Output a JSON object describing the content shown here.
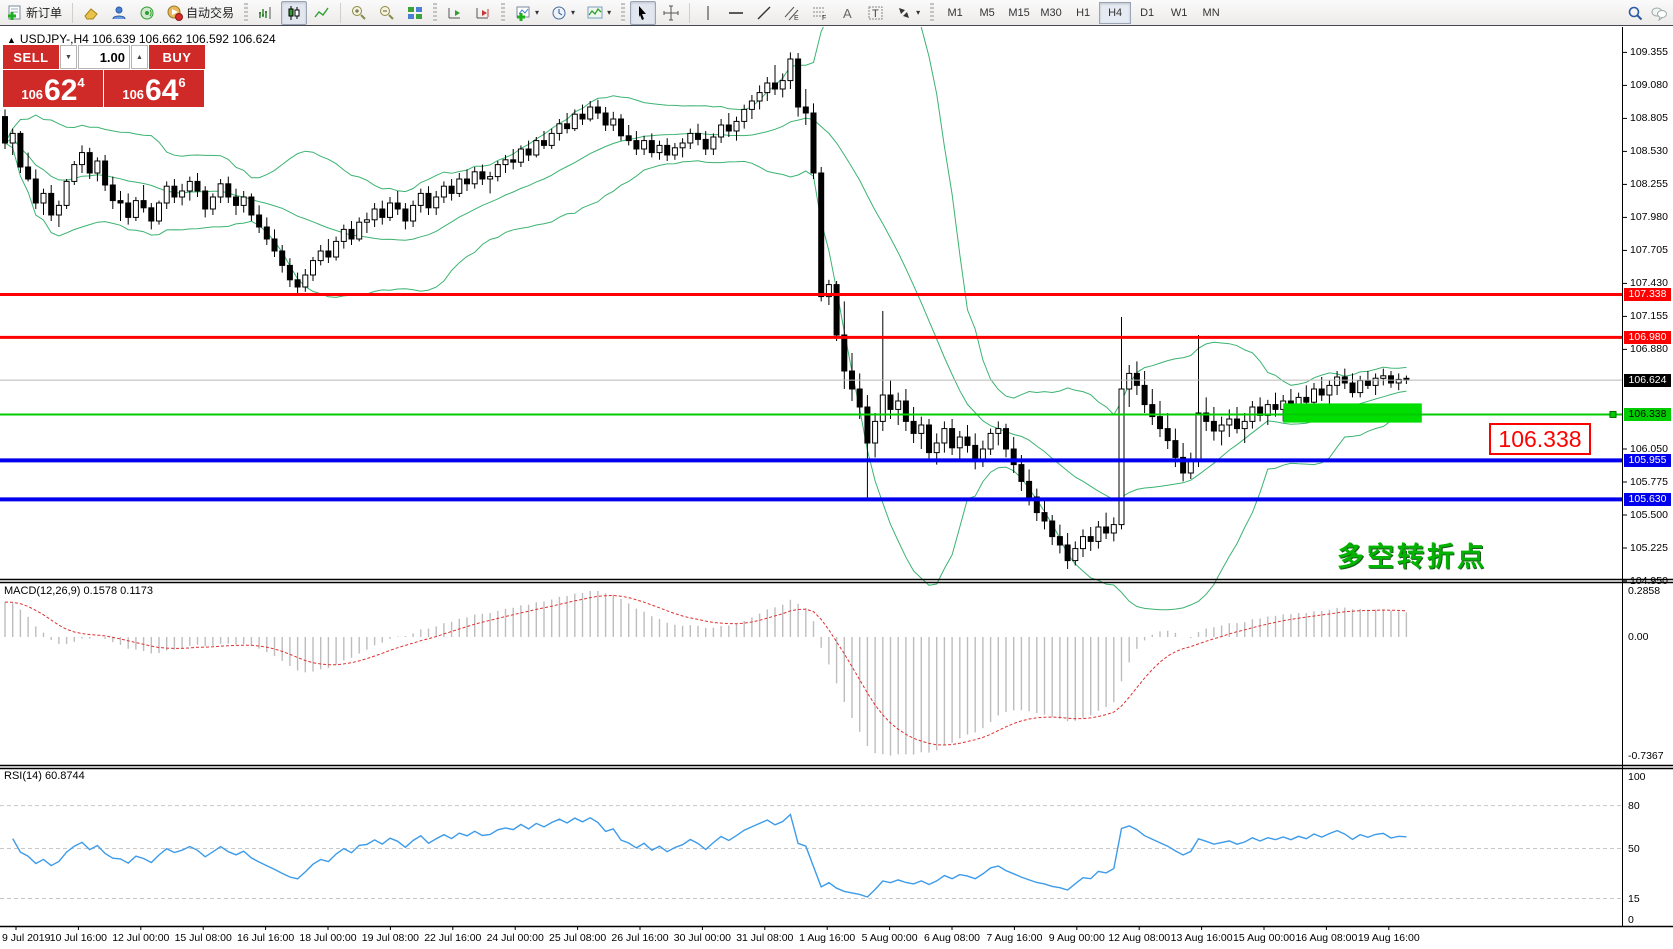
{
  "toolbar": {
    "new_order_label": "新订单",
    "autotrade_label": "自动交易",
    "timeframes": [
      "M1",
      "M5",
      "M15",
      "M30",
      "H1",
      "H4",
      "D1",
      "W1",
      "MN"
    ],
    "active_timeframe": "H4"
  },
  "trade_panel": {
    "sell_label": "SELL",
    "buy_label": "BUY",
    "volume": "1.00",
    "sell_price": {
      "prefix": "106",
      "big": "62",
      "sup": "4"
    },
    "buy_price": {
      "prefix": "106",
      "big": "64",
      "sup": "6"
    }
  },
  "chart": {
    "title": "USDJPY-,H4  106.639 106.662 106.592 106.624"
  },
  "indicators": {
    "macd": {
      "label": "MACD(12,26,9) 0.1578 0.1173",
      "scale": [
        "0.2858",
        "0.00",
        "-0.7367"
      ]
    },
    "rsi": {
      "label": "RSI(14) 60.8744",
      "scale": [
        "100",
        "80",
        "50",
        "15",
        "0"
      ]
    }
  },
  "annotations": {
    "turning_point": "多空转折点",
    "callout": "106.338"
  },
  "price_axis": {
    "ticks": [
      109.355,
      109.08,
      108.805,
      108.53,
      108.255,
      107.98,
      107.705,
      107.43,
      107.155,
      106.88,
      106.05,
      105.775,
      105.5,
      105.225,
      104.95
    ],
    "badges": [
      {
        "text": "107.338",
        "price": 107.338,
        "bg": "#ff0000",
        "fg": "#ffffff"
      },
      {
        "text": "106.980",
        "price": 106.98,
        "bg": "#ff0000",
        "fg": "#ffffff"
      },
      {
        "text": "106.624",
        "price": 106.624,
        "bg": "#000000",
        "fg": "#ffffff"
      },
      {
        "text": "106.338",
        "price": 106.338,
        "bg": "#00cc00",
        "fg": "#000000"
      },
      {
        "text": "105.955",
        "price": 105.955,
        "bg": "#0000ee",
        "fg": "#ffffff"
      },
      {
        "text": "105.630",
        "price": 105.63,
        "bg": "#0000ee",
        "fg": "#ffffff"
      }
    ]
  },
  "time_axis": {
    "labels": [
      "9 Jul 2019",
      "10 Jul 16:00",
      "12 Jul 00:00",
      "15 Jul 08:00",
      "16 Jul 16:00",
      "18 Jul 00:00",
      "19 Jul 08:00",
      "22 Jul 16:00",
      "24 Jul 00:00",
      "25 Jul 08:00",
      "26 Jul 16:00",
      "30 Jul 00:00",
      "31 Jul 08:00",
      "1 Aug 16:00",
      "5 Aug 00:00",
      "6 Aug 08:00",
      "7 Aug 16:00",
      "9 Aug 00:00",
      "12 Aug 08:00",
      "13 Aug 16:00",
      "15 Aug 00:00",
      "16 Aug 08:00",
      "19 Aug 16:00"
    ]
  },
  "chart_data": {
    "type": "candlestick",
    "symbol": "USDJPY-",
    "timeframe": "H4",
    "last_quote": {
      "open": 106.639,
      "high": 106.662,
      "low": 106.592,
      "close": 106.624
    },
    "ylim": [
      104.95,
      109.355
    ],
    "colors": {
      "bollinger": "#3cb371",
      "bull_body": "#ffffff",
      "bear_body": "#000000",
      "macd_hist": "#bdbdbd",
      "macd_signal": "#e03030",
      "rsi_line": "#3d9be9",
      "level_red": "#ff0000",
      "level_green": "#00cc00",
      "level_blue": "#0000ee",
      "current_price": "#b8b8b8",
      "zone_fill": "#00dd00"
    },
    "horizontal_lines": [
      {
        "price": 107.338,
        "color": "#ff0000",
        "width": 3
      },
      {
        "price": 106.98,
        "color": "#ff0000",
        "width": 3
      },
      {
        "price": 106.338,
        "color": "#00cc00",
        "width": 2
      },
      {
        "price": 105.955,
        "color": "#0000ee",
        "width": 4
      },
      {
        "price": 105.63,
        "color": "#0000ee",
        "width": 4
      }
    ],
    "current_price_line": {
      "price": 106.624,
      "color": "#b8b8b8",
      "width": 1
    },
    "zone_rect": {
      "price_top": 106.43,
      "price_bottom": 106.27,
      "bar_from": 166,
      "bar_to": 184
    },
    "indicator_params": [
      {
        "name": "Bollinger Bands",
        "period": 20,
        "deviation": 2
      },
      {
        "name": "MACD",
        "fast": 12,
        "slow": 26,
        "signal": 9,
        "current": [
          0.1578,
          0.1173
        ],
        "scale_max": 0.2858,
        "scale_min": -0.7367
      },
      {
        "name": "RSI",
        "period": 14,
        "current": 60.8744,
        "levels": [
          80,
          50,
          15
        ]
      }
    ],
    "candles_ohlc": [
      [
        108.82,
        108.88,
        108.55,
        108.6
      ],
      [
        108.6,
        108.72,
        108.5,
        108.68
      ],
      [
        108.68,
        108.7,
        108.35,
        108.4
      ],
      [
        108.4,
        108.52,
        108.28,
        108.3
      ],
      [
        108.3,
        108.38,
        108.05,
        108.1
      ],
      [
        108.1,
        108.22,
        108.0,
        108.18
      ],
      [
        108.18,
        108.25,
        107.95,
        108.0
      ],
      [
        108.0,
        108.12,
        107.9,
        108.08
      ],
      [
        108.08,
        108.3,
        108.05,
        108.28
      ],
      [
        108.28,
        108.45,
        108.25,
        108.42
      ],
      [
        108.42,
        108.58,
        108.35,
        108.52
      ],
      [
        108.52,
        108.56,
        108.3,
        108.35
      ],
      [
        108.35,
        108.48,
        108.28,
        108.45
      ],
      [
        108.45,
        108.5,
        108.2,
        108.25
      ],
      [
        108.25,
        108.32,
        108.05,
        108.12
      ],
      [
        108.12,
        108.2,
        107.95,
        108.1
      ],
      [
        108.1,
        108.18,
        107.92,
        107.98
      ],
      [
        107.98,
        108.15,
        107.95,
        108.12
      ],
      [
        108.12,
        108.25,
        108.02,
        108.06
      ],
      [
        108.06,
        108.1,
        107.88,
        107.95
      ],
      [
        107.95,
        108.12,
        107.92,
        108.1
      ],
      [
        108.1,
        108.28,
        108.05,
        108.24
      ],
      [
        108.24,
        108.3,
        108.1,
        108.15
      ],
      [
        108.15,
        108.26,
        108.08,
        108.2
      ],
      [
        108.2,
        108.32,
        108.12,
        108.28
      ],
      [
        108.28,
        108.35,
        108.15,
        108.2
      ],
      [
        108.2,
        108.24,
        107.98,
        108.05
      ],
      [
        108.05,
        108.18,
        108.0,
        108.15
      ],
      [
        108.15,
        108.3,
        108.1,
        108.26
      ],
      [
        108.26,
        108.32,
        108.1,
        108.15
      ],
      [
        108.15,
        108.22,
        108.0,
        108.08
      ],
      [
        108.08,
        108.2,
        108.02,
        108.15
      ],
      [
        108.15,
        108.18,
        107.95,
        108.0
      ],
      [
        108.0,
        108.08,
        107.85,
        107.9
      ],
      [
        107.9,
        107.98,
        107.75,
        107.8
      ],
      [
        107.8,
        107.88,
        107.65,
        107.7
      ],
      [
        107.7,
        107.75,
        107.52,
        107.58
      ],
      [
        107.58,
        107.64,
        107.4,
        107.46
      ],
      [
        107.46,
        107.52,
        107.34,
        107.4
      ],
      [
        107.4,
        107.55,
        107.36,
        107.5
      ],
      [
        107.5,
        107.65,
        107.45,
        107.62
      ],
      [
        107.62,
        107.75,
        107.58,
        107.7
      ],
      [
        107.7,
        107.8,
        107.6,
        107.65
      ],
      [
        107.65,
        107.82,
        107.62,
        107.78
      ],
      [
        107.78,
        107.92,
        107.72,
        107.88
      ],
      [
        107.88,
        107.95,
        107.75,
        107.8
      ],
      [
        107.8,
        107.98,
        107.78,
        107.94
      ],
      [
        107.94,
        108.02,
        107.85,
        107.96
      ],
      [
        107.96,
        108.1,
        107.9,
        108.05
      ],
      [
        108.05,
        108.12,
        107.92,
        107.98
      ],
      [
        107.98,
        108.15,
        107.95,
        108.1
      ],
      [
        108.1,
        108.2,
        108.0,
        108.05
      ],
      [
        108.05,
        108.1,
        107.88,
        107.95
      ],
      [
        107.95,
        108.12,
        107.9,
        108.08
      ],
      [
        108.08,
        108.22,
        108.02,
        108.18
      ],
      [
        108.18,
        108.24,
        108.0,
        108.06
      ],
      [
        108.06,
        108.2,
        108.0,
        108.15
      ],
      [
        108.15,
        108.28,
        108.1,
        108.24
      ],
      [
        108.24,
        108.3,
        108.12,
        108.18
      ],
      [
        108.18,
        108.35,
        108.15,
        108.3
      ],
      [
        108.3,
        108.38,
        108.2,
        108.26
      ],
      [
        108.26,
        108.4,
        108.22,
        108.36
      ],
      [
        108.36,
        108.42,
        108.25,
        108.3
      ],
      [
        108.3,
        108.36,
        108.18,
        108.32
      ],
      [
        108.32,
        108.45,
        108.28,
        108.42
      ],
      [
        108.42,
        108.5,
        108.35,
        108.46
      ],
      [
        108.46,
        108.55,
        108.38,
        108.44
      ],
      [
        108.44,
        108.58,
        108.4,
        108.55
      ],
      [
        108.55,
        108.62,
        108.45,
        108.5
      ],
      [
        108.5,
        108.65,
        108.48,
        108.62
      ],
      [
        108.62,
        108.7,
        108.55,
        108.58
      ],
      [
        108.58,
        108.72,
        108.55,
        108.68
      ],
      [
        108.68,
        108.8,
        108.62,
        108.76
      ],
      [
        108.76,
        108.85,
        108.68,
        108.72
      ],
      [
        108.72,
        108.88,
        108.7,
        108.84
      ],
      [
        108.84,
        108.92,
        108.75,
        108.8
      ],
      [
        108.8,
        108.95,
        108.78,
        108.9
      ],
      [
        108.9,
        108.96,
        108.8,
        108.85
      ],
      [
        108.85,
        108.9,
        108.7,
        108.75
      ],
      [
        108.75,
        108.86,
        108.7,
        108.8
      ],
      [
        108.8,
        108.84,
        108.62,
        108.66
      ],
      [
        108.66,
        108.75,
        108.58,
        108.62
      ],
      [
        108.62,
        108.7,
        108.5,
        108.55
      ],
      [
        108.55,
        108.66,
        108.5,
        108.62
      ],
      [
        108.62,
        108.68,
        108.48,
        108.52
      ],
      [
        108.52,
        108.62,
        108.46,
        108.58
      ],
      [
        108.58,
        108.64,
        108.45,
        108.5
      ],
      [
        108.5,
        108.6,
        108.46,
        108.56
      ],
      [
        108.56,
        108.64,
        108.48,
        108.6
      ],
      [
        108.6,
        108.72,
        108.55,
        108.68
      ],
      [
        108.68,
        108.76,
        108.58,
        108.63
      ],
      [
        108.63,
        108.7,
        108.5,
        108.55
      ],
      [
        108.55,
        108.68,
        108.5,
        108.65
      ],
      [
        108.65,
        108.8,
        108.6,
        108.75
      ],
      [
        108.75,
        108.85,
        108.65,
        108.7
      ],
      [
        108.7,
        108.82,
        108.62,
        108.78
      ],
      [
        108.78,
        108.92,
        108.72,
        108.88
      ],
      [
        108.88,
        109.0,
        108.8,
        108.95
      ],
      [
        108.95,
        109.08,
        108.88,
        109.02
      ],
      [
        109.02,
        109.15,
        108.95,
        109.1
      ],
      [
        109.1,
        109.25,
        109.0,
        109.05
      ],
      [
        109.05,
        109.18,
        108.98,
        109.12
      ],
      [
        109.12,
        109.355,
        109.05,
        109.3
      ],
      [
        109.3,
        109.35,
        108.82,
        108.9
      ],
      [
        108.9,
        109.05,
        108.75,
        108.85
      ],
      [
        108.85,
        108.93,
        108.3,
        108.35
      ],
      [
        108.35,
        108.4,
        107.28,
        107.32
      ],
      [
        107.32,
        107.46,
        107.25,
        107.42
      ],
      [
        107.42,
        107.45,
        106.95,
        107.0
      ],
      [
        107.0,
        107.28,
        106.55,
        106.7
      ],
      [
        106.7,
        106.85,
        106.45,
        106.55
      ],
      [
        106.55,
        106.68,
        106.3,
        106.4
      ],
      [
        106.4,
        106.5,
        105.63,
        106.1
      ],
      [
        106.1,
        106.35,
        105.98,
        106.28
      ],
      [
        106.28,
        107.2,
        106.2,
        106.5
      ],
      [
        106.5,
        106.62,
        106.3,
        106.38
      ],
      [
        106.38,
        106.52,
        106.25,
        106.45
      ],
      [
        106.45,
        106.55,
        106.2,
        106.28
      ],
      [
        106.28,
        106.4,
        106.1,
        106.18
      ],
      [
        106.18,
        106.32,
        106.05,
        106.25
      ],
      [
        106.25,
        106.3,
        105.95,
        106.02
      ],
      [
        106.02,
        106.18,
        105.92,
        106.1
      ],
      [
        106.1,
        106.28,
        106.02,
        106.22
      ],
      [
        106.22,
        106.3,
        106.0,
        106.06
      ],
      [
        106.06,
        106.2,
        105.95,
        106.15
      ],
      [
        106.15,
        106.25,
        106.02,
        106.08
      ],
      [
        106.08,
        106.18,
        105.88,
        105.95
      ],
      [
        105.95,
        106.12,
        105.9,
        106.05
      ],
      [
        106.05,
        106.22,
        106.0,
        106.18
      ],
      [
        106.18,
        106.28,
        106.08,
        106.22
      ],
      [
        106.22,
        106.26,
        105.98,
        106.05
      ],
      [
        106.05,
        106.15,
        105.85,
        105.92
      ],
      [
        105.92,
        106.0,
        105.7,
        105.78
      ],
      [
        105.78,
        105.88,
        105.58,
        105.65
      ],
      [
        105.65,
        105.72,
        105.45,
        105.52
      ],
      [
        105.52,
        105.62,
        105.38,
        105.45
      ],
      [
        105.45,
        105.5,
        105.25,
        105.32
      ],
      [
        105.32,
        105.42,
        105.18,
        105.25
      ],
      [
        105.25,
        105.35,
        105.05,
        105.12
      ],
      [
        105.12,
        105.28,
        105.08,
        105.22
      ],
      [
        105.22,
        105.38,
        105.15,
        105.32
      ],
      [
        105.32,
        105.4,
        105.2,
        105.28
      ],
      [
        105.28,
        105.45,
        105.22,
        105.4
      ],
      [
        105.4,
        105.52,
        105.3,
        105.35
      ],
      [
        105.35,
        105.48,
        105.28,
        105.42
      ],
      [
        105.42,
        107.15,
        105.38,
        106.55
      ],
      [
        106.55,
        106.75,
        106.4,
        106.68
      ],
      [
        106.68,
        106.78,
        106.5,
        106.58
      ],
      [
        106.58,
        106.7,
        106.35,
        106.42
      ],
      [
        106.42,
        106.55,
        106.25,
        106.32
      ],
      [
        106.32,
        106.45,
        106.15,
        106.22
      ],
      [
        106.22,
        106.35,
        106.05,
        106.12
      ],
      [
        106.12,
        106.22,
        105.9,
        105.98
      ],
      [
        105.98,
        106.1,
        105.78,
        105.85
      ],
      [
        105.85,
        106.02,
        105.8,
        105.95
      ],
      [
        105.95,
        107.0,
        105.9,
        106.35
      ],
      [
        106.35,
        106.48,
        106.2,
        106.28
      ],
      [
        106.28,
        106.4,
        106.12,
        106.2
      ],
      [
        106.2,
        106.32,
        106.08,
        106.25
      ],
      [
        106.25,
        106.38,
        106.15,
        106.3
      ],
      [
        106.3,
        106.4,
        106.18,
        106.22
      ],
      [
        106.22,
        106.35,
        106.1,
        106.28
      ],
      [
        106.28,
        106.45,
        106.22,
        106.4
      ],
      [
        106.4,
        106.48,
        106.28,
        106.33
      ],
      [
        106.33,
        106.46,
        106.25,
        106.42
      ],
      [
        106.42,
        106.52,
        106.32,
        106.38
      ],
      [
        106.38,
        106.5,
        106.28,
        106.45
      ],
      [
        106.45,
        106.55,
        106.35,
        106.4
      ],
      [
        106.4,
        106.52,
        106.3,
        106.48
      ],
      [
        106.48,
        106.58,
        106.38,
        106.44
      ],
      [
        106.44,
        106.6,
        106.4,
        106.55
      ],
      [
        106.55,
        106.65,
        106.45,
        106.5
      ],
      [
        106.5,
        106.62,
        106.42,
        106.58
      ],
      [
        106.58,
        106.7,
        106.5,
        106.65
      ],
      [
        106.65,
        106.72,
        106.55,
        106.6
      ],
      [
        106.6,
        106.68,
        106.48,
        106.52
      ],
      [
        106.52,
        106.66,
        106.48,
        106.62
      ],
      [
        106.62,
        106.7,
        106.55,
        106.58
      ],
      [
        106.58,
        106.68,
        106.5,
        106.64
      ],
      [
        106.639,
        106.72,
        106.58,
        106.66
      ],
      [
        106.66,
        106.7,
        106.56,
        106.6
      ],
      [
        106.6,
        106.68,
        106.54,
        106.63
      ],
      [
        106.639,
        106.662,
        106.592,
        106.624
      ]
    ]
  }
}
